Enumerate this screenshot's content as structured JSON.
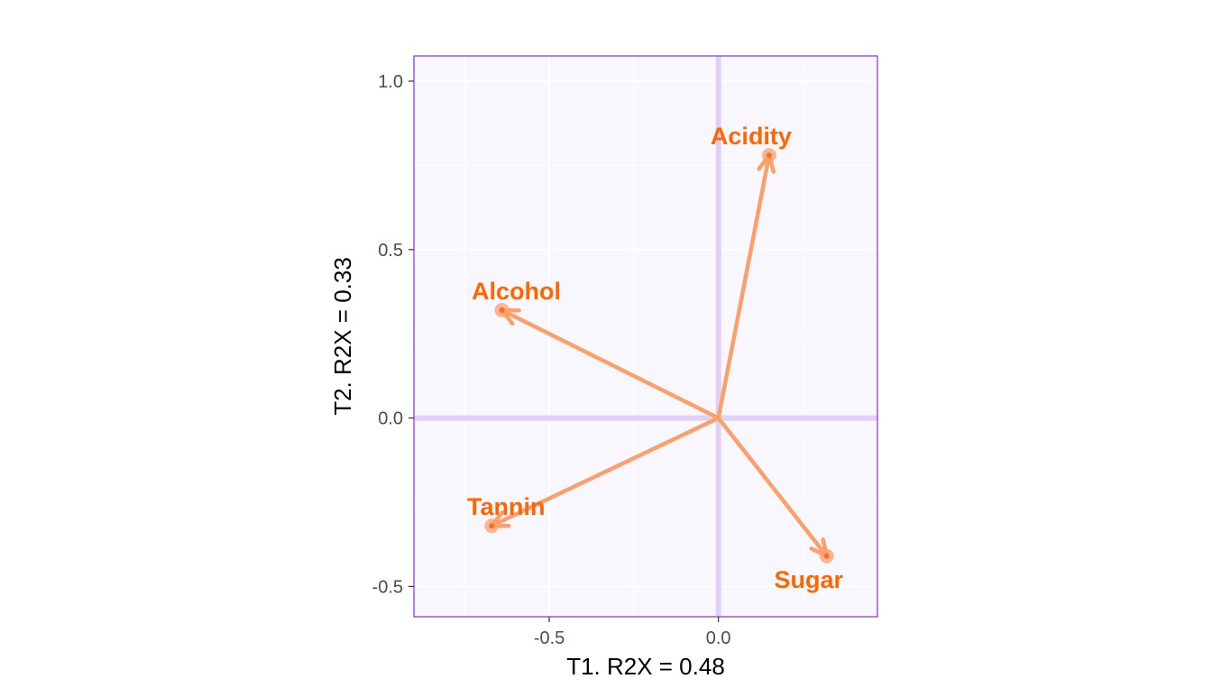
{
  "chart_data": {
    "type": "scatter",
    "subtype": "loadings-biplot",
    "title": "",
    "xlabel": "T1. R2X = 0.48",
    "ylabel": "T2. R2X = 0.33",
    "xlim": [
      -0.9,
      0.47
    ],
    "ylim": [
      -0.59,
      1.075
    ],
    "x_ticks": [
      -0.5,
      0.0
    ],
    "x_tick_labels": [
      "-0.5",
      "0.0"
    ],
    "y_ticks": [
      -0.5,
      0.0,
      0.5,
      1.0
    ],
    "y_tick_labels": [
      "-0.5",
      "0.0",
      "0.5",
      "1.0"
    ],
    "grid": true,
    "reference_lines": {
      "x": 0,
      "y": 0
    },
    "points": [
      {
        "label": "Acidity",
        "x": 0.15,
        "y": 0.78
      },
      {
        "label": "Alcohol",
        "x": -0.64,
        "y": 0.32
      },
      {
        "label": "Tannin",
        "x": -0.67,
        "y": -0.32
      },
      {
        "label": "Sugar",
        "x": 0.32,
        "y": -0.41
      }
    ],
    "colors": {
      "panel_background": "#f9f7fe",
      "panel_border": "#8a2be2",
      "grid": "#ffffff",
      "reference_line": "#e0cff6",
      "arrow": "#fb9f6b",
      "point_dot": "#ff6d2b",
      "label": "#ff6600"
    }
  }
}
